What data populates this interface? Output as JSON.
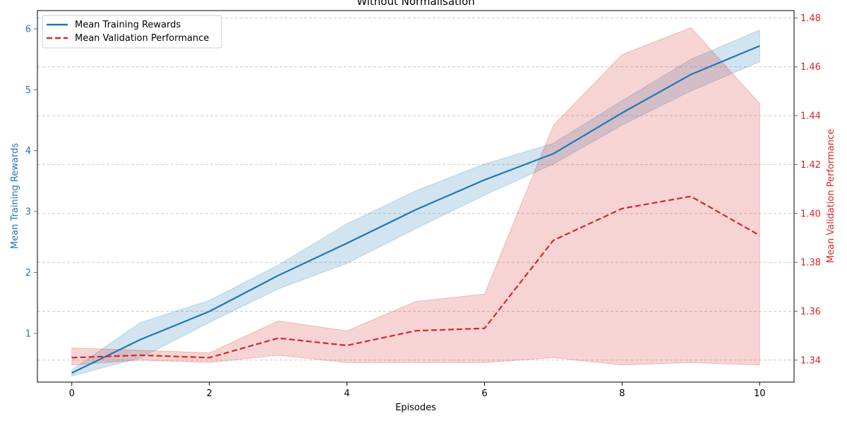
{
  "chart_data": {
    "type": "line",
    "title": "Without Normalisation",
    "xlabel": "Episodes",
    "ylabel_left": "Mean Training Rewards",
    "ylabel_right": "Mean Validation Performance",
    "xlim": [
      -0.5,
      10.5
    ],
    "ylim_left": [
      0.2,
      6.3
    ],
    "ylim_right": [
      1.331,
      1.483
    ],
    "x_ticks": [
      0,
      2,
      4,
      6,
      8,
      10
    ],
    "y_ticks_left": [
      1,
      2,
      3,
      4,
      5,
      6
    ],
    "y_ticks_right": [
      1.34,
      1.36,
      1.38,
      1.4,
      1.42,
      1.44,
      1.46,
      1.48
    ],
    "grid": "horizontal dashed (right axis)",
    "legend_position": "top-left",
    "x": [
      0,
      1,
      2,
      3,
      4,
      5,
      6,
      7,
      8,
      9,
      10
    ],
    "series": [
      {
        "name": "Mean Training Rewards",
        "axis": "left",
        "color": "#1f77b4",
        "style": "solid",
        "values": [
          0.35,
          0.9,
          1.36,
          1.95,
          2.48,
          3.03,
          3.52,
          3.95,
          4.62,
          5.25,
          5.72
        ],
        "band_low": [
          0.3,
          0.6,
          1.18,
          1.73,
          2.15,
          2.72,
          3.27,
          3.78,
          4.42,
          4.98,
          5.46
        ],
        "band_high": [
          0.4,
          1.18,
          1.54,
          2.12,
          2.8,
          3.34,
          3.78,
          4.12,
          4.82,
          5.5,
          5.98
        ]
      },
      {
        "name": "Mean Validation Performance",
        "axis": "right",
        "color": "#d62728",
        "style": "dashed",
        "values": [
          1.341,
          1.342,
          1.341,
          1.349,
          1.346,
          1.352,
          1.353,
          1.389,
          1.402,
          1.407,
          1.391
        ],
        "band_low": [
          1.338,
          1.34,
          1.339,
          1.342,
          1.339,
          1.339,
          1.339,
          1.341,
          1.338,
          1.339,
          1.338
        ],
        "band_high": [
          1.345,
          1.344,
          1.343,
          1.356,
          1.352,
          1.364,
          1.367,
          1.436,
          1.465,
          1.476,
          1.445
        ]
      }
    ]
  }
}
